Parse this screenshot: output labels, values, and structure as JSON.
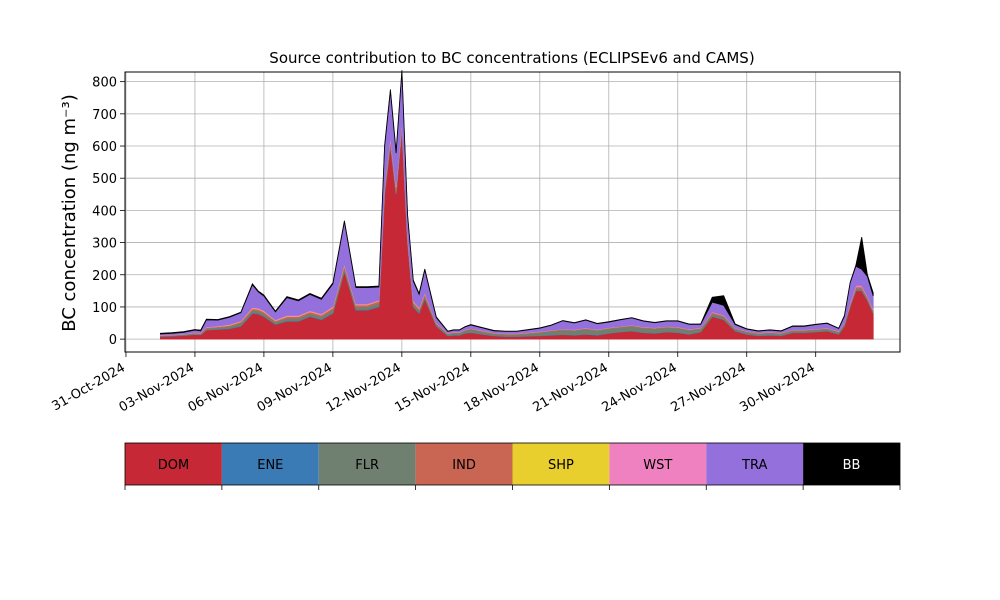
{
  "chart_data": {
    "type": "area",
    "stacked": true,
    "title": "Source contribution to BC concentrations (ECLIPSEv6 and CAMS)",
    "ylabel": "BC concentration (ng m⁻³)",
    "xlabel": "",
    "ylim": [
      -40,
      830
    ],
    "yticks": [
      0,
      100,
      200,
      300,
      400,
      500,
      600,
      700,
      800
    ],
    "xlim": [
      "2024-10-30T23:00",
      "2024-12-03T16:00"
    ],
    "xticks": [
      "2024-10-31",
      "2024-11-03",
      "2024-11-06",
      "2024-11-09",
      "2024-11-12",
      "2024-11-15",
      "2024-11-18",
      "2024-11-21",
      "2024-11-24",
      "2024-11-27",
      "2024-11-30"
    ],
    "xtick_labels": [
      "31-Oct-2024",
      "03-Nov-2024",
      "06-Nov-2024",
      "09-Nov-2024",
      "12-Nov-2024",
      "15-Nov-2024",
      "18-Nov-2024",
      "21-Nov-2024",
      "24-Nov-2024",
      "27-Nov-2024",
      "30-Nov-2024"
    ],
    "grid": true,
    "x": [
      "2024-11-01T12:00",
      "2024-11-02T00:00",
      "2024-11-02T12:00",
      "2024-11-03T00:00",
      "2024-11-03T06:00",
      "2024-11-03T12:00",
      "2024-11-04T00:00",
      "2024-11-04T12:00",
      "2024-11-05T00:00",
      "2024-11-05T12:00",
      "2024-11-05T18:00",
      "2024-11-06T00:00",
      "2024-11-06T12:00",
      "2024-11-07T00:00",
      "2024-11-07T12:00",
      "2024-11-08T00:00",
      "2024-11-08T12:00",
      "2024-11-09T00:00",
      "2024-11-09T12:00",
      "2024-11-10T00:00",
      "2024-11-10T12:00",
      "2024-11-11T00:00",
      "2024-11-11T06:00",
      "2024-11-11T12:00",
      "2024-11-11T18:00",
      "2024-11-12T00:00",
      "2024-11-12T06:00",
      "2024-11-12T12:00",
      "2024-11-12T18:00",
      "2024-11-13T00:00",
      "2024-11-13T12:00",
      "2024-11-14T00:00",
      "2024-11-14T06:00",
      "2024-11-14T12:00",
      "2024-11-14T18:00",
      "2024-11-15T00:00",
      "2024-11-15T12:00",
      "2024-11-16T00:00",
      "2024-11-16T12:00",
      "2024-11-17T00:00",
      "2024-11-17T12:00",
      "2024-11-18T00:00",
      "2024-11-18T12:00",
      "2024-11-19T00:00",
      "2024-11-19T12:00",
      "2024-11-20T00:00",
      "2024-11-20T12:00",
      "2024-11-21T00:00",
      "2024-11-21T12:00",
      "2024-11-22T00:00",
      "2024-11-22T12:00",
      "2024-11-23T00:00",
      "2024-11-23T12:00",
      "2024-11-24T00:00",
      "2024-11-24T12:00",
      "2024-11-25T00:00",
      "2024-11-25T12:00",
      "2024-11-26T00:00",
      "2024-11-26T12:00",
      "2024-11-27T00:00",
      "2024-11-27T12:00",
      "2024-11-28T00:00",
      "2024-11-28T12:00",
      "2024-11-29T00:00",
      "2024-11-29T12:00",
      "2024-11-30T00:00",
      "2024-11-30T12:00",
      "2024-12-01T00:00",
      "2024-12-01T06:00",
      "2024-12-01T12:00",
      "2024-12-01T18:00",
      "2024-12-02T00:00",
      "2024-12-02T06:00",
      "2024-12-02T12:00"
    ],
    "series": [
      {
        "name": "DOM",
        "color": "#c62835",
        "values": [
          8,
          9,
          11,
          14,
          13,
          28,
          30,
          32,
          40,
          80,
          78,
          70,
          45,
          55,
          55,
          70,
          60,
          80,
          210,
          90,
          90,
          100,
          450,
          600,
          450,
          650,
          300,
          100,
          80,
          125,
          40,
          10,
          12,
          12,
          18,
          20,
          15,
          10,
          8,
          8,
          9,
          10,
          12,
          14,
          12,
          15,
          12,
          18,
          22,
          25,
          20,
          18,
          22,
          20,
          15,
          22,
          70,
          60,
          25,
          15,
          10,
          12,
          10,
          20,
          20,
          22,
          25,
          15,
          40,
          100,
          150,
          150,
          120,
          80
        ]
      },
      {
        "name": "ENE",
        "color": "#3a7bb6",
        "values": [
          1,
          1,
          1,
          1,
          1,
          1,
          1,
          2,
          2,
          2,
          2,
          2,
          2,
          2,
          2,
          2,
          2,
          2,
          2,
          2,
          2,
          2,
          2,
          2,
          2,
          2,
          2,
          2,
          2,
          2,
          1,
          1,
          1,
          1,
          1,
          1,
          1,
          1,
          1,
          1,
          1,
          1,
          1,
          1,
          1,
          1,
          1,
          1,
          1,
          1,
          1,
          1,
          1,
          1,
          1,
          1,
          1,
          1,
          1,
          1,
          1,
          1,
          1,
          1,
          1,
          1,
          1,
          1,
          1,
          1,
          1,
          1,
          1,
          1
        ]
      },
      {
        "name": "FLR",
        "color": "#708070",
        "values": [
          2,
          2,
          2,
          3,
          3,
          4,
          5,
          6,
          8,
          8,
          8,
          8,
          6,
          8,
          8,
          8,
          8,
          10,
          10,
          8,
          8,
          10,
          10,
          10,
          10,
          10,
          8,
          8,
          8,
          8,
          6,
          5,
          6,
          6,
          8,
          10,
          8,
          6,
          6,
          6,
          8,
          10,
          12,
          14,
          14,
          16,
          14,
          14,
          14,
          15,
          14,
          14,
          14,
          14,
          12,
          10,
          8,
          8,
          6,
          6,
          6,
          6,
          6,
          6,
          6,
          6,
          6,
          6,
          6,
          6,
          6,
          6,
          6,
          6
        ]
      },
      {
        "name": "IND",
        "color": "#c96553",
        "values": [
          1,
          1,
          1,
          2,
          2,
          3,
          3,
          3,
          4,
          5,
          5,
          5,
          4,
          5,
          5,
          5,
          5,
          6,
          8,
          6,
          6,
          6,
          10,
          12,
          10,
          12,
          8,
          6,
          5,
          6,
          3,
          2,
          2,
          2,
          2,
          2,
          2,
          2,
          2,
          2,
          2,
          2,
          2,
          2,
          2,
          2,
          2,
          2,
          2,
          2,
          2,
          2,
          2,
          2,
          2,
          2,
          4,
          4,
          2,
          2,
          2,
          2,
          2,
          2,
          2,
          2,
          2,
          2,
          3,
          5,
          6,
          6,
          5,
          4
        ]
      },
      {
        "name": "SHP",
        "color": "#e8cf2d",
        "values": [
          0,
          0,
          0,
          0,
          0,
          0,
          0,
          1,
          1,
          1,
          1,
          1,
          1,
          1,
          1,
          1,
          1,
          1,
          1,
          1,
          1,
          1,
          1,
          1,
          1,
          1,
          1,
          1,
          1,
          1,
          0,
          0,
          0,
          0,
          0,
          0,
          0,
          0,
          0,
          0,
          0,
          0,
          0,
          0,
          0,
          0,
          0,
          0,
          0,
          0,
          0,
          0,
          0,
          0,
          0,
          0,
          0,
          0,
          0,
          0,
          0,
          0,
          0,
          0,
          0,
          0,
          0,
          0,
          0,
          0,
          0,
          0,
          0,
          0
        ]
      },
      {
        "name": "WST",
        "color": "#f081c0",
        "values": [
          1,
          1,
          1,
          1,
          1,
          2,
          2,
          2,
          2,
          3,
          3,
          3,
          2,
          3,
          3,
          3,
          3,
          3,
          4,
          3,
          3,
          3,
          5,
          6,
          5,
          6,
          4,
          3,
          3,
          3,
          2,
          1,
          1,
          1,
          1,
          1,
          1,
          1,
          1,
          1,
          1,
          1,
          1,
          1,
          1,
          1,
          1,
          1,
          1,
          1,
          1,
          1,
          1,
          1,
          1,
          1,
          2,
          2,
          1,
          1,
          1,
          1,
          1,
          1,
          1,
          1,
          1,
          1,
          1,
          3,
          4,
          4,
          3,
          3
        ]
      },
      {
        "name": "TRA",
        "color": "#9370db",
        "values": [
          3,
          4,
          5,
          7,
          6,
          22,
          18,
          22,
          25,
          70,
          50,
          45,
          25,
          55,
          45,
          50,
          45,
          70,
          130,
          50,
          50,
          40,
          120,
          140,
          100,
          150,
          60,
          60,
          40,
          70,
          15,
          5,
          6,
          6,
          8,
          10,
          8,
          6,
          6,
          6,
          8,
          10,
          15,
          25,
          20,
          24,
          18,
          17,
          20,
          22,
          18,
          15,
          16,
          18,
          15,
          10,
          30,
          30,
          10,
          6,
          5,
          6,
          5,
          10,
          10,
          13,
          14,
          8,
          20,
          60,
          60,
          50,
          60,
          40
        ]
      },
      {
        "name": "BB",
        "color": "#000000",
        "values": [
          2,
          2,
          2,
          2,
          2,
          2,
          2,
          2,
          2,
          3,
          3,
          3,
          2,
          3,
          3,
          3,
          3,
          3,
          3,
          3,
          3,
          3,
          4,
          5,
          5,
          5,
          3,
          3,
          3,
          3,
          2,
          1,
          1,
          1,
          1,
          1,
          1,
          1,
          1,
          1,
          1,
          1,
          1,
          1,
          1,
          1,
          1,
          1,
          1,
          1,
          1,
          1,
          1,
          1,
          1,
          1,
          15,
          30,
          2,
          1,
          1,
          1,
          1,
          1,
          1,
          1,
          1,
          1,
          2,
          2,
          3,
          100,
          5,
          10
        ]
      }
    ]
  }
}
